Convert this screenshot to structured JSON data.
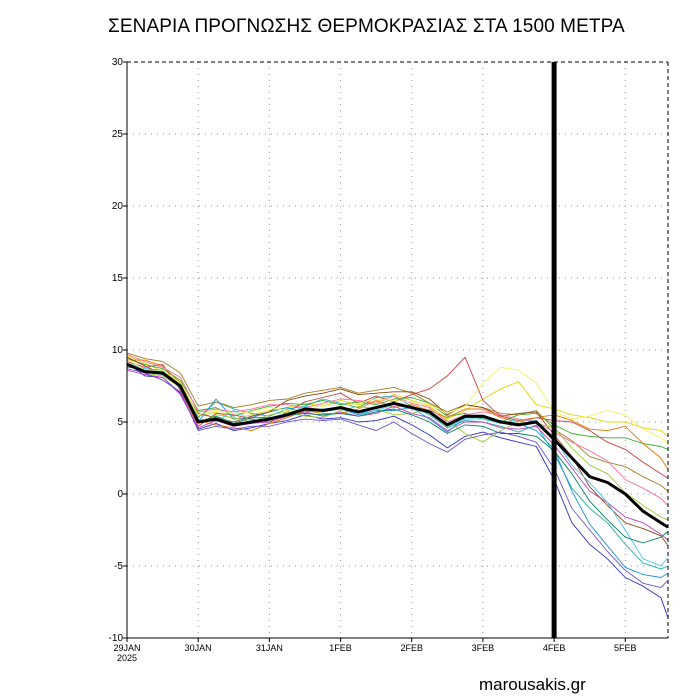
{
  "title": "ΣΕΝΑΡΙΑ ΠΡΟΓΝΩΣΗΣ ΘΕΡΜΟΚΡΑΣΙΑΣ ΣΤΑ 1500 ΜΕΤΡΑ",
  "footer": "marousakis.gr",
  "chart_data": {
    "type": "line",
    "title": "ΣΕΝΑΡΙΑ ΠΡΟΓΝΩΣΗΣ ΘΕΡΜΟΚΡΑΣΙΑΣ ΣΤΑ 1500 ΜΕΤΡΑ",
    "xlabel": "",
    "ylabel": "",
    "ylim": [
      -10,
      30
    ],
    "yticks": [
      -10,
      -5,
      0,
      5,
      10,
      15,
      20,
      25,
      30
    ],
    "ytick_labels": [
      "-10",
      "-5",
      "0",
      "5",
      "10",
      "15",
      "20",
      "25",
      "30"
    ],
    "xlim": [
      0,
      7.6
    ],
    "x_unit": "days from 29JAN 2025 00UTC",
    "xticks": [
      0,
      1,
      2,
      3,
      4,
      5,
      6,
      7
    ],
    "xtick_labels": [
      "29JAN",
      "30JAN",
      "31JAN",
      "1FEB",
      "2FEB",
      "3FEB",
      "4FEB",
      "5FEB"
    ],
    "xtick_year": "2025",
    "grid": true,
    "grid_style": "dotted",
    "marker_line": {
      "x": 6.0,
      "color": "#000000"
    },
    "x": [
      0,
      0.25,
      0.5,
      0.75,
      1,
      1.25,
      1.5,
      1.75,
      2,
      2.25,
      2.5,
      2.75,
      3,
      3.25,
      3.5,
      3.75,
      4,
      4.25,
      4.5,
      4.75,
      5,
      5.25,
      5.5,
      5.75,
      6,
      6.25,
      6.5,
      6.75,
      7,
      7.25,
      7.5,
      7.6
    ],
    "mean": {
      "name": "mean",
      "color": "#000000",
      "values": [
        9.0,
        8.5,
        8.4,
        7.5,
        5.0,
        5.2,
        4.8,
        5.0,
        5.2,
        5.5,
        5.9,
        5.8,
        6.0,
        5.7,
        6.0,
        6.3,
        6.0,
        5.7,
        4.8,
        5.4,
        5.4,
        5.0,
        4.8,
        5.0,
        3.8,
        2.5,
        1.2,
        0.8,
        0.0,
        -1.2,
        -2.0,
        -2.3
      ]
    },
    "series": [
      {
        "color": "#e8d000",
        "values": [
          9.6,
          9.1,
          8.5,
          7.8,
          5.4,
          5.7,
          5.2,
          5.5,
          5.8,
          6.0,
          6.3,
          6.1,
          6.5,
          6.2,
          6.4,
          6.9,
          6.5,
          6.1,
          5.2,
          5.8,
          6.6,
          7.3,
          7.8,
          6.2,
          5.9,
          5.5,
          5.3,
          5.0,
          5.0,
          4.6,
          4.4,
          4.0
        ]
      },
      {
        "color": "#d04040",
        "values": [
          9.2,
          8.8,
          9.0,
          7.2,
          4.7,
          5.6,
          5.5,
          5.2,
          5.0,
          5.7,
          6.4,
          6.7,
          7.0,
          6.3,
          6.8,
          6.4,
          6.9,
          7.3,
          8.2,
          9.5,
          6.5,
          5.4,
          5.1,
          5.3,
          5.1,
          5.0,
          4.4,
          3.6,
          3.1,
          2.2,
          1.4,
          1.1
        ]
      },
      {
        "color": "#3030c8",
        "values": [
          9.1,
          8.2,
          8.1,
          7.0,
          4.5,
          4.9,
          4.4,
          4.6,
          4.9,
          5.1,
          5.5,
          5.2,
          5.3,
          5.0,
          5.1,
          5.4,
          4.8,
          4.1,
          3.2,
          4.0,
          4.3,
          3.9,
          3.6,
          3.3,
          1.0,
          -2.0,
          -3.5,
          -4.5,
          -5.8,
          -6.4,
          -7.2,
          -8.6
        ]
      },
      {
        "color": "#20b0a0",
        "values": [
          8.9,
          8.6,
          8.4,
          7.5,
          5.3,
          6.4,
          5.9,
          5.6,
          5.4,
          5.9,
          6.1,
          6.6,
          6.3,
          6.0,
          6.7,
          6.8,
          6.1,
          5.5,
          4.6,
          5.1,
          5.0,
          4.7,
          4.3,
          4.8,
          2.8,
          0.4,
          -1.0,
          -2.0,
          -3.5,
          -4.8,
          -5.2,
          -5.0
        ]
      },
      {
        "color": "#30b030",
        "values": [
          9.4,
          9.0,
          8.7,
          7.9,
          5.8,
          6.0,
          5.4,
          5.8,
          6.1,
          6.3,
          6.2,
          6.5,
          6.2,
          6.4,
          6.2,
          6.6,
          6.7,
          6.3,
          5.4,
          5.6,
          5.2,
          5.0,
          5.5,
          5.6,
          4.8,
          4.2,
          4.0,
          3.9,
          3.9,
          3.5,
          3.3,
          3.1
        ]
      },
      {
        "color": "#c040c0",
        "values": [
          8.6,
          8.3,
          8.1,
          6.9,
          4.6,
          5.1,
          4.7,
          4.9,
          5.0,
          5.4,
          5.7,
          5.4,
          5.7,
          5.4,
          5.6,
          6.1,
          5.6,
          5.3,
          4.4,
          5.0,
          5.0,
          4.6,
          4.5,
          4.7,
          3.4,
          1.8,
          0.2,
          -0.6,
          -1.6,
          -2.0,
          -2.8,
          -3.2
        ]
      },
      {
        "color": "#a08020",
        "values": [
          9.8,
          9.4,
          9.2,
          8.4,
          6.1,
          6.4,
          6.0,
          6.2,
          6.5,
          6.6,
          7.0,
          7.2,
          7.4,
          7.0,
          7.2,
          7.4,
          7.0,
          6.3,
          5.7,
          6.2,
          6.0,
          5.6,
          5.5,
          5.8,
          4.5,
          3.7,
          2.6,
          2.2,
          1.9,
          1.2,
          0.6,
          0.2
        ]
      },
      {
        "color": "#e07800",
        "values": [
          9.3,
          9.3,
          8.9,
          7.7,
          5.1,
          4.8,
          4.6,
          4.4,
          4.9,
          5.3,
          5.8,
          5.6,
          5.6,
          5.9,
          6.5,
          6.0,
          6.2,
          5.8,
          5.3,
          5.9,
          5.9,
          5.3,
          5.0,
          5.3,
          5.5,
          5.1,
          4.5,
          4.4,
          4.7,
          3.5,
          2.5,
          1.7
        ]
      },
      {
        "color": "#2090e0",
        "values": [
          8.8,
          8.7,
          8.6,
          7.3,
          5.0,
          6.6,
          5.2,
          5.3,
          5.7,
          6.0,
          5.7,
          5.9,
          5.9,
          5.5,
          5.8,
          5.8,
          6.0,
          5.2,
          4.3,
          5.3,
          5.3,
          5.1,
          4.9,
          4.4,
          3.1,
          0.2,
          -2.1,
          -3.6,
          -5.1,
          -5.6,
          -5.8,
          -5.5
        ]
      },
      {
        "color": "#8b4513",
        "values": [
          9.5,
          8.9,
          8.3,
          7.6,
          5.6,
          5.3,
          5.0,
          5.4,
          5.7,
          6.5,
          6.8,
          7.0,
          7.3,
          6.9,
          7.0,
          7.1,
          7.1,
          6.6,
          5.5,
          6.2,
          6.0,
          5.4,
          5.6,
          5.7,
          4.1,
          2.6,
          0.5,
          -0.8,
          -2.0,
          -2.4,
          -2.9,
          -3.6
        ]
      },
      {
        "color": "#9acd32",
        "values": [
          9.0,
          8.4,
          8.2,
          7.4,
          4.9,
          5.5,
          5.3,
          5.0,
          5.5,
          5.7,
          5.4,
          5.3,
          5.8,
          6.1,
          5.9,
          5.5,
          5.6,
          5.9,
          5.1,
          4.2,
          3.6,
          4.4,
          5.0,
          4.9,
          4.6,
          3.2,
          2.0,
          1.4,
          0.1,
          -0.8,
          -1.6,
          -1.8
        ]
      },
      {
        "color": "#ff6fa0",
        "values": [
          9.7,
          9.2,
          8.8,
          8.1,
          5.7,
          5.9,
          5.7,
          5.9,
          6.2,
          6.2,
          6.0,
          6.3,
          6.6,
          6.5,
          6.3,
          6.8,
          6.3,
          6.0,
          5.0,
          5.5,
          5.7,
          5.5,
          5.2,
          5.0,
          4.3,
          3.6,
          3.0,
          2.3,
          1.0,
          0.4,
          -0.3,
          -0.8
        ]
      },
      {
        "color": "#7050d0",
        "values": [
          8.7,
          8.4,
          7.9,
          7.1,
          4.4,
          4.7,
          4.5,
          4.7,
          4.7,
          5.0,
          5.2,
          5.1,
          5.2,
          4.8,
          4.4,
          5.0,
          4.2,
          3.5,
          2.9,
          3.8,
          4.1,
          4.3,
          4.0,
          3.6,
          1.8,
          -1.0,
          -2.5,
          -4.0,
          -5.3,
          -6.2,
          -6.5,
          -6.0
        ]
      },
      {
        "color": "#40c8f0",
        "values": [
          9.1,
          8.7,
          8.5,
          7.6,
          5.2,
          5.0,
          5.8,
          5.1,
          5.3,
          5.6,
          6.1,
          5.7,
          5.9,
          5.6,
          5.8,
          6.2,
          5.9,
          5.6,
          4.7,
          5.2,
          5.2,
          4.9,
          5.2,
          5.1,
          3.9,
          2.0,
          0.8,
          -0.6,
          -2.5,
          -4.5,
          -5.0,
          -4.4
        ]
      },
      {
        "color": "#f0f060",
        "values": [
          9.4,
          8.6,
          8.6,
          7.7,
          5.5,
          5.8,
          5.6,
          5.7,
          6.0,
          5.8,
          5.9,
          6.2,
          6.1,
          6.3,
          6.6,
          6.5,
          6.4,
          6.2,
          5.6,
          6.1,
          7.7,
          8.8,
          8.6,
          7.7,
          5.7,
          5.2,
          5.4,
          5.8,
          5.5,
          4.5,
          3.9,
          3.5
        ]
      },
      {
        "color": "#008060",
        "values": [
          9.0,
          8.5,
          8.3,
          7.5,
          5.0,
          5.4,
          4.9,
          5.3,
          5.3,
          5.5,
          5.6,
          5.5,
          5.6,
          5.4,
          5.7,
          5.9,
          5.5,
          5.0,
          4.2,
          4.8,
          4.7,
          4.2,
          4.2,
          4.0,
          3.0,
          1.4,
          -0.5,
          -1.8,
          -3.0,
          -3.4,
          -3.0,
          -2.6
        ]
      }
    ]
  }
}
